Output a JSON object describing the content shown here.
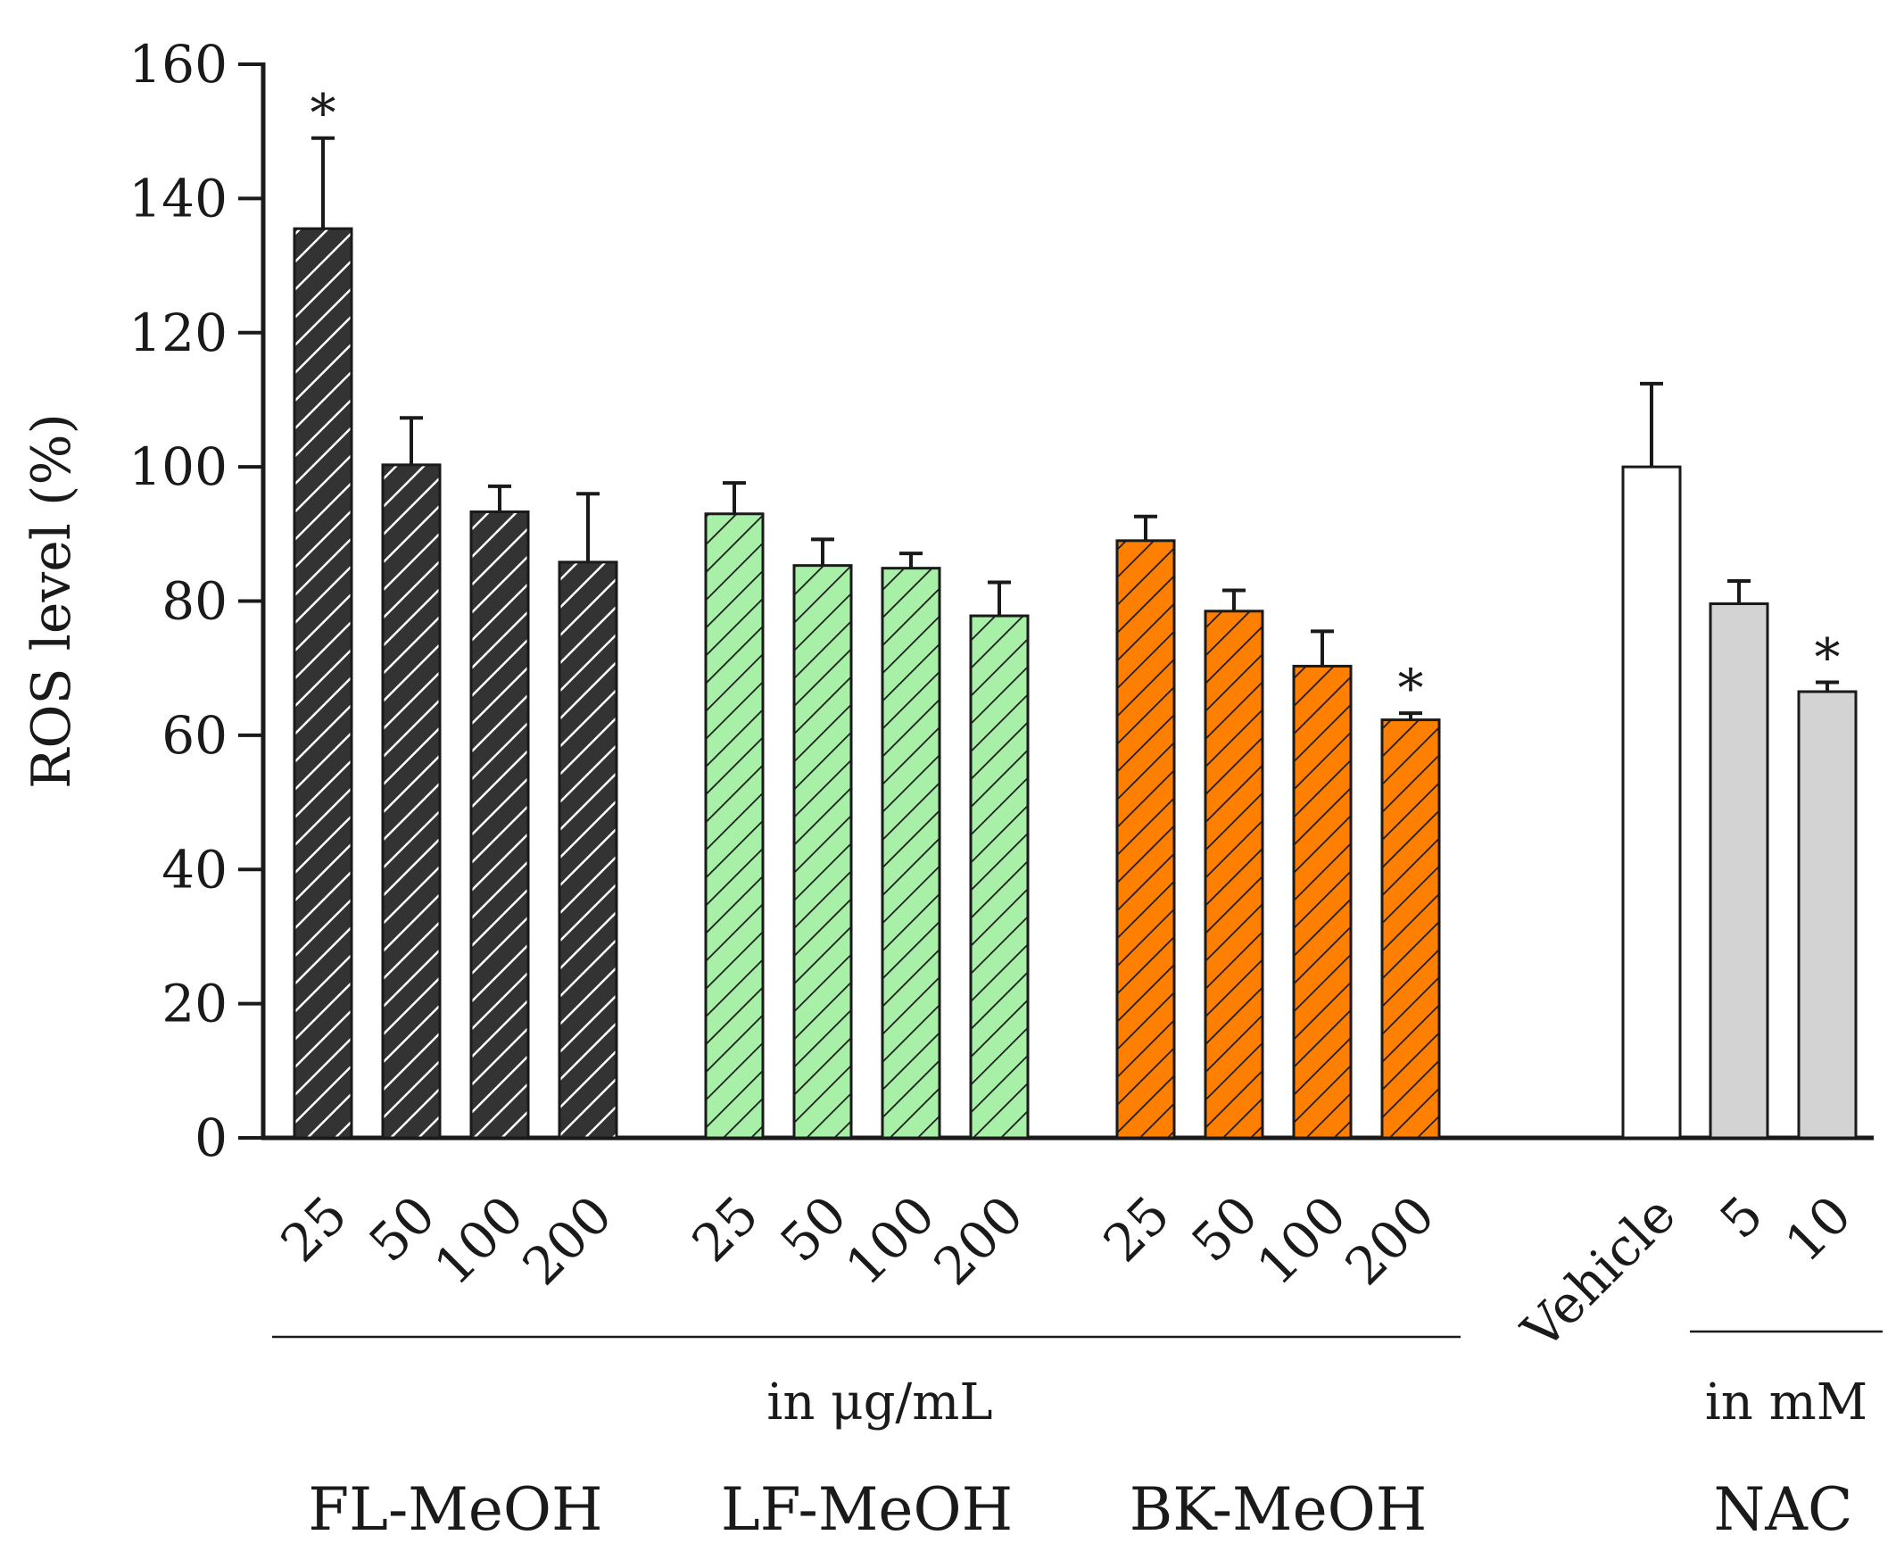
{
  "chart_data": {
    "type": "bar",
    "title": "",
    "xlabel": "",
    "ylabel": "ROS level (%)",
    "ylim": [
      0,
      160
    ],
    "yticks": [
      0,
      20,
      40,
      60,
      80,
      100,
      120,
      140,
      160
    ],
    "grid": false,
    "colors": {
      "FL-MeOH": "#333333",
      "LF-MeOH": "#a8f0a8",
      "BK-MeOH": "#ff7f00",
      "Vehicle": "#ffffff",
      "NAC": "#d3d3d3"
    },
    "groups": [
      {
        "name": "FL-MeOH",
        "pattern": "white-hatch",
        "categories": [
          "25",
          "50",
          "100",
          "200"
        ],
        "values": [
          135.5,
          100.3,
          93.3,
          85.8
        ],
        "errors": [
          13.5,
          7.0,
          3.8,
          10.2
        ],
        "significant": [
          true,
          false,
          false,
          false
        ]
      },
      {
        "name": "LF-MeOH",
        "pattern": "dark-hatch",
        "categories": [
          "25",
          "50",
          "100",
          "200"
        ],
        "values": [
          93.0,
          85.3,
          84.9,
          77.8
        ],
        "errors": [
          4.6,
          3.9,
          2.2,
          5.0
        ],
        "significant": [
          false,
          false,
          false,
          false
        ]
      },
      {
        "name": "BK-MeOH",
        "pattern": "dark-hatch",
        "categories": [
          "25",
          "50",
          "100",
          "200"
        ],
        "values": [
          89.0,
          78.5,
          70.3,
          62.3
        ],
        "errors": [
          3.6,
          3.1,
          5.2,
          1.0
        ],
        "significant": [
          false,
          false,
          false,
          true
        ]
      },
      {
        "name": "",
        "pattern": "solid",
        "categories": [
          "Vehicle"
        ],
        "values": [
          100.0
        ],
        "errors": [
          12.4
        ],
        "significant": [
          false
        ]
      },
      {
        "name": "NAC",
        "pattern": "solid",
        "categories": [
          "5",
          "10"
        ],
        "values": [
          79.6,
          66.5
        ],
        "errors": [
          3.4,
          1.4
        ],
        "significant": [
          false,
          true
        ]
      }
    ],
    "significance_marker": "*",
    "unit_labels": [
      {
        "text": "in μg/mL"
      },
      {
        "text": "in mM"
      }
    ]
  }
}
